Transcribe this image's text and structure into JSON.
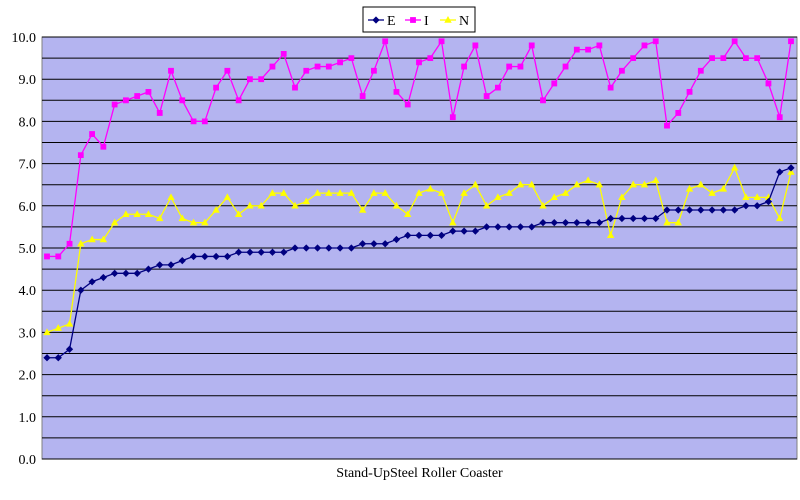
{
  "chart_data": {
    "type": "line",
    "xlabel": "Stand-UpSteel Roller Coaster",
    "ylabel": "",
    "ylim": [
      0,
      10
    ],
    "y_ticks": [
      "0.0",
      "1.0",
      "2.0",
      "3.0",
      "4.0",
      "5.0",
      "6.0",
      "7.0",
      "8.0",
      "9.0",
      "10.0"
    ],
    "grid": true,
    "legend_position": "top",
    "plot_background": "#b4b4f0",
    "series": [
      {
        "name": "E",
        "color": "#000080",
        "marker": "diamond",
        "values": [
          2.4,
          2.4,
          2.6,
          4.0,
          4.2,
          4.3,
          4.4,
          4.4,
          4.4,
          4.5,
          4.6,
          4.6,
          4.7,
          4.8,
          4.8,
          4.8,
          4.8,
          4.9,
          4.9,
          4.9,
          4.9,
          4.9,
          5.0,
          5.0,
          5.0,
          5.0,
          5.0,
          5.0,
          5.1,
          5.1,
          5.1,
          5.2,
          5.3,
          5.3,
          5.3,
          5.3,
          5.4,
          5.4,
          5.4,
          5.5,
          5.5,
          5.5,
          5.5,
          5.5,
          5.6,
          5.6,
          5.6,
          5.6,
          5.6,
          5.6,
          5.7,
          5.7,
          5.7,
          5.7,
          5.7,
          5.9,
          5.9,
          5.9,
          5.9,
          5.9,
          5.9,
          5.9,
          6.0,
          6.0,
          6.1,
          6.8,
          6.9
        ]
      },
      {
        "name": "I",
        "color": "#ff00ff",
        "marker": "square",
        "values": [
          4.8,
          4.8,
          5.1,
          7.2,
          7.7,
          7.4,
          8.4,
          8.5,
          8.6,
          8.7,
          8.2,
          9.2,
          8.5,
          8.0,
          8.0,
          8.8,
          9.2,
          8.5,
          9.0,
          9.0,
          9.3,
          9.6,
          8.8,
          9.2,
          9.3,
          9.3,
          9.4,
          9.5,
          8.6,
          9.2,
          9.9,
          8.7,
          8.4,
          9.4,
          9.5,
          9.9,
          8.1,
          9.3,
          9.8,
          8.6,
          8.8,
          9.3,
          9.3,
          9.8,
          8.5,
          8.9,
          9.3,
          9.7,
          9.7,
          9.8,
          8.8,
          9.2,
          9.5,
          9.8,
          9.9,
          7.9,
          8.2,
          8.7,
          9.2,
          9.5,
          9.5,
          9.9,
          9.5,
          9.5,
          8.9,
          8.1,
          9.9
        ]
      },
      {
        "name": "N",
        "color": "#ffff00",
        "marker": "triangle",
        "values": [
          3.0,
          3.1,
          3.2,
          5.1,
          5.2,
          5.2,
          5.6,
          5.8,
          5.8,
          5.8,
          5.7,
          6.2,
          5.7,
          5.6,
          5.6,
          5.9,
          6.2,
          5.8,
          6.0,
          6.0,
          6.3,
          6.3,
          6.0,
          6.1,
          6.3,
          6.3,
          6.3,
          6.3,
          5.9,
          6.3,
          6.3,
          6.0,
          5.8,
          6.3,
          6.4,
          6.3,
          5.6,
          6.3,
          6.5,
          6.0,
          6.2,
          6.3,
          6.5,
          6.5,
          6.0,
          6.2,
          6.3,
          6.5,
          6.6,
          6.5,
          5.3,
          6.2,
          6.5,
          6.5,
          6.6,
          5.6,
          5.6,
          6.4,
          6.5,
          6.3,
          6.4,
          6.9,
          6.2,
          6.2,
          6.2,
          5.7,
          6.8
        ]
      }
    ]
  }
}
